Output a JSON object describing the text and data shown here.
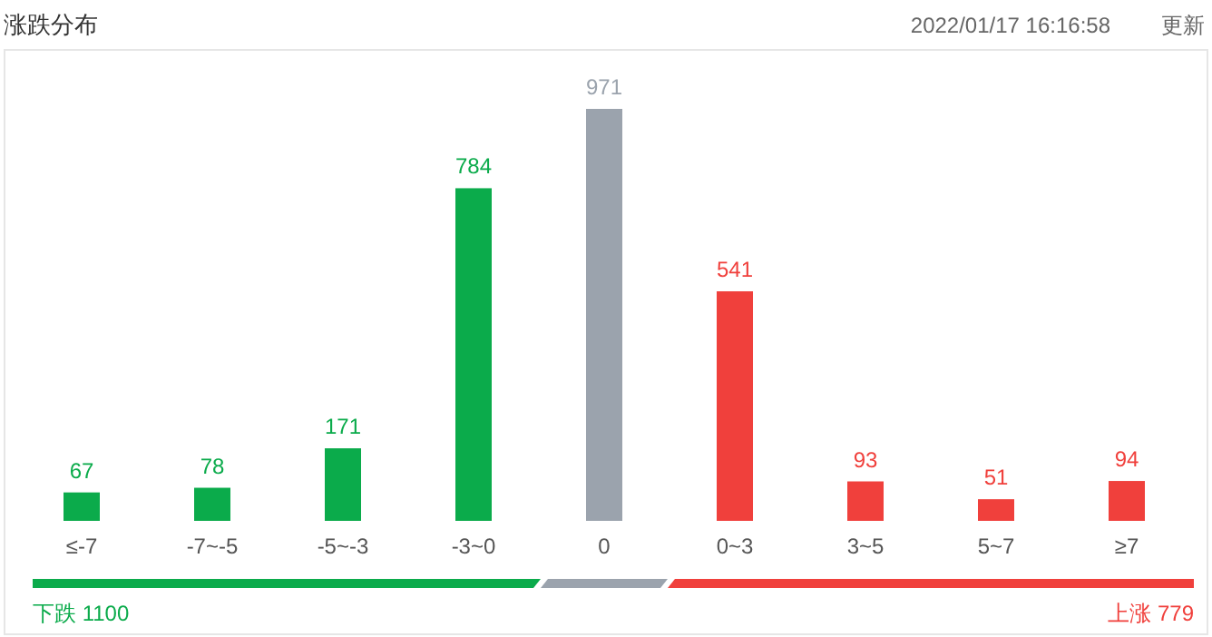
{
  "chart_data": {
    "type": "bar",
    "title": "涨跌分布",
    "categories": [
      "≤-7",
      "-7~-5",
      "-5~-3",
      "-3~0",
      "0",
      "0~3",
      "3~5",
      "5~7",
      "≥7"
    ],
    "values": [
      67,
      78,
      171,
      784,
      971,
      541,
      93,
      51,
      94
    ],
    "colors": [
      "#0bab4b",
      "#0bab4b",
      "#0bab4b",
      "#0bab4b",
      "#9ba3ad",
      "#f0403c",
      "#f0403c",
      "#f0403c",
      "#f0403c"
    ],
    "data_labels": true,
    "annotations": [
      "2022/01/17 16:16:58",
      "更新",
      "下跌 1100",
      "上涨 779"
    ]
  }
}
